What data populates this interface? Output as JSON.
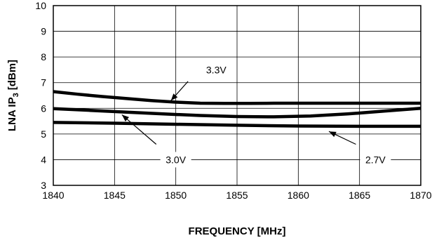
{
  "chart_data": {
    "type": "line",
    "title": "",
    "xlabel": "FREQUENCY [MHz]",
    "ylabel_main": "LNA IP",
    "ylabel_sub": "3",
    "ylabel_unit": "[dBm]",
    "xlim": [
      1840,
      1870
    ],
    "ylim": [
      3,
      10
    ],
    "xticks": [
      1840,
      1845,
      1850,
      1855,
      1860,
      1865,
      1870
    ],
    "yticks": [
      3,
      4,
      5,
      6,
      7,
      8,
      9,
      10
    ],
    "grid": true,
    "series": [
      {
        "name": "3.3V",
        "x": [
          1840,
          1842,
          1844,
          1846,
          1848,
          1850,
          1852,
          1854,
          1856,
          1858,
          1860,
          1862,
          1864,
          1866,
          1868,
          1870
        ],
        "y": [
          6.65,
          6.55,
          6.46,
          6.38,
          6.3,
          6.24,
          6.2,
          6.19,
          6.19,
          6.2,
          6.2,
          6.2,
          6.2,
          6.2,
          6.2,
          6.2
        ]
      },
      {
        "name": "3.0V",
        "x": [
          1840,
          1843,
          1846,
          1849,
          1852,
          1855,
          1858,
          1861,
          1864,
          1867,
          1870
        ],
        "y": [
          5.99,
          5.92,
          5.85,
          5.78,
          5.72,
          5.68,
          5.67,
          5.7,
          5.78,
          5.89,
          6.0
        ]
      },
      {
        "name": "2.7V",
        "x": [
          1840,
          1845,
          1850,
          1855,
          1860,
          1865,
          1870
        ],
        "y": [
          5.45,
          5.42,
          5.38,
          5.34,
          5.31,
          5.3,
          5.3
        ]
      }
    ],
    "annotations": [
      {
        "text": "3.3V",
        "label_at": [
          1853.3,
          7.5
        ],
        "arrow_from": [
          1851.0,
          7.05
        ],
        "arrow_to": [
          1849.6,
          6.3
        ]
      },
      {
        "text": "3.0V",
        "label_at": [
          1850.0,
          4.0
        ],
        "arrow_from": [
          1848.4,
          4.6
        ],
        "arrow_to": [
          1845.6,
          5.75
        ]
      },
      {
        "text": "2.7V",
        "label_at": [
          1866.3,
          4.0
        ],
        "arrow_from": [
          1864.7,
          4.6
        ],
        "arrow_to": [
          1862.5,
          5.1
        ]
      }
    ]
  }
}
